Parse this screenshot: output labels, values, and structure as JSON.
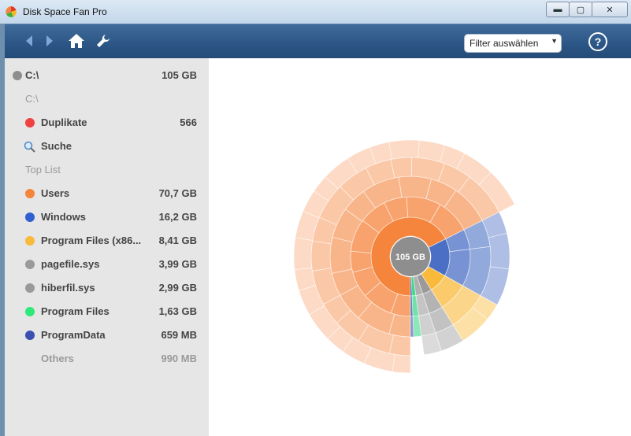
{
  "window": {
    "title": "Disk Space Fan Pro",
    "min": "▬",
    "max": "▢",
    "close": "✕"
  },
  "toolbar": {
    "back_icon": "back-arrow-icon",
    "forward_icon": "forward-arrow-icon",
    "home_icon": "home-icon",
    "settings_icon": "wrench-icon",
    "filter_label": "Filter auswählen",
    "help_label": "?"
  },
  "sidebar": {
    "drive": {
      "label": "C:\\",
      "size": "105 GB",
      "color": "#8e8e8e"
    },
    "path": "C:\\",
    "duplicates": {
      "label": "Duplikate",
      "count": "566",
      "color": "#f04040"
    },
    "search": {
      "label": "Suche"
    },
    "top_list_header": "Top List",
    "items": [
      {
        "label": "Users",
        "size": "70,7 GB",
        "color": "#f5843c"
      },
      {
        "label": "Windows",
        "size": "16,2 GB",
        "color": "#2f5fd0"
      },
      {
        "label": "Program Files (x86...",
        "size": "8,41 GB",
        "color": "#f9b93a"
      },
      {
        "label": "pagefile.sys",
        "size": "3,99 GB",
        "color": "#9a9a9a"
      },
      {
        "label": "hiberfil.sys",
        "size": "2,99 GB",
        "color": "#9a9a9a"
      },
      {
        "label": "Program Files",
        "size": "1,63 GB",
        "color": "#2ee87a"
      },
      {
        "label": "ProgramData",
        "size": "659 MB",
        "color": "#3a4fb0"
      }
    ],
    "others": {
      "label": "Others",
      "size": "990 MB"
    }
  },
  "chart_data": {
    "type": "pie",
    "center_label": "105 GB",
    "slices": [
      {
        "label": "Users",
        "value": 70.7,
        "color": "#f5843c"
      },
      {
        "label": "Windows",
        "value": 16.2,
        "color": "#4a6fc4"
      },
      {
        "label": "Program Files (x86...",
        "value": 8.41,
        "color": "#f9b93a"
      },
      {
        "label": "pagefile.sys",
        "value": 3.99,
        "color": "#9a9a9a"
      },
      {
        "label": "hiberfil.sys",
        "value": 2.99,
        "color": "#b0b0b0"
      },
      {
        "label": "Program Files",
        "value": 1.63,
        "color": "#3ed88a"
      },
      {
        "label": "ProgramData",
        "value": 0.66,
        "color": "#3a4fb0"
      }
    ]
  }
}
